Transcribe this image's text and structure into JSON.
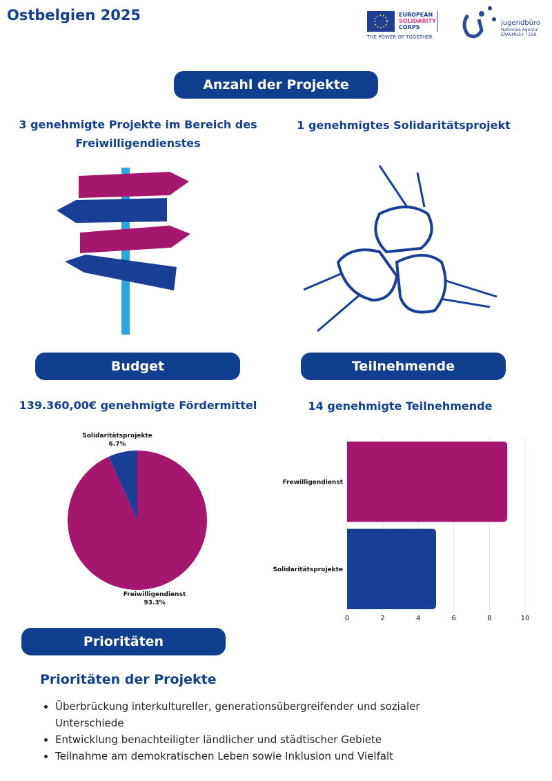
{
  "header": {
    "title": "Ostbelgien 2025",
    "esc_logo": [
      "EUROPEAN",
      "SOLIDARITY",
      "CORPS",
      "THE POWER OF TOGETHER."
    ],
    "agency_logo": {
      "name": "jugendbüro",
      "lines": [
        "Nationale Agentur",
        "ERASMUS+ / ESK"
      ]
    }
  },
  "projects": {
    "heading": "Anzahl der Projekte",
    "left": "3 genehmigte Projekte im Bereich des Freiwilligendienstes",
    "right": "1 genehmigtes Solidaritätsprojekt"
  },
  "budget": {
    "heading": "Budget",
    "text": "139.360,00€ genehmigte Fördermittel"
  },
  "participants": {
    "heading": "Teilnehmende",
    "text": "14 genehmigte Teilnehmende"
  },
  "chart_data": [
    {
      "type": "pie",
      "categories": [
        "Freiwilligendienst",
        "Solidaritätsprojekte"
      ],
      "values": [
        93.3,
        6.7
      ],
      "value_labels": [
        "93.3%",
        "6.7%"
      ],
      "colors": [
        "#a5166f",
        "#183f95"
      ]
    },
    {
      "type": "hbar",
      "categories": [
        "Frewilligendienst",
        "Solidaritätsprojekte"
      ],
      "values": [
        9,
        5
      ],
      "colors": [
        "#a5166f",
        "#183f95"
      ],
      "xlim": [
        0,
        10
      ],
      "xticks": [
        0,
        2,
        4,
        6,
        8,
        10
      ],
      "grid": true
    }
  ],
  "priorities": {
    "heading": "Prioritäten",
    "subheading": "Prioritäten der Projekte",
    "items": [
      "Überbrückung interkultureller, generationsübergreifender und sozialer Unterschiede",
      "Entwicklung benachteiligter ländlicher und städtischer Gebiete",
      "Teilnahme am demokratischen Leben sowie Inklusion und Vielfalt"
    ]
  }
}
